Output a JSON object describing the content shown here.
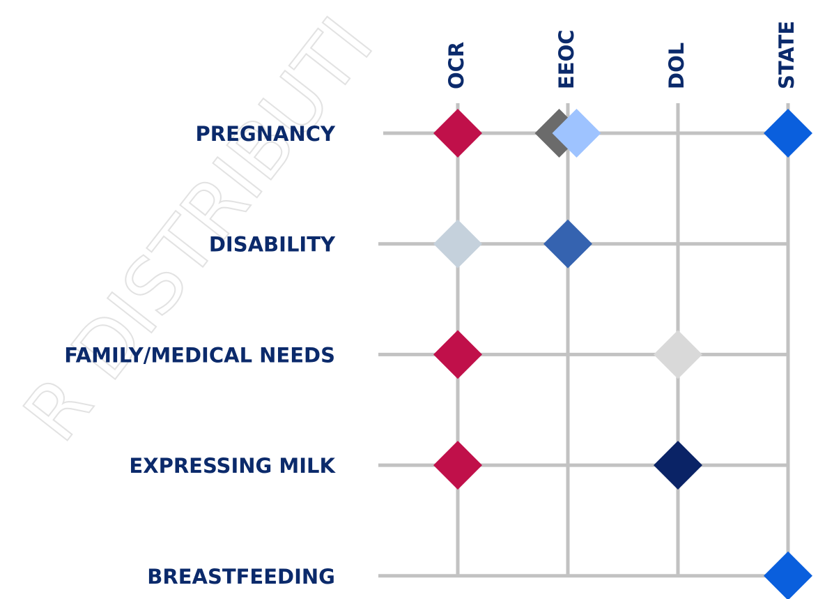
{
  "watermark": "R DISTRIBUTI",
  "columns": [
    "OCR",
    "EEOC",
    "DOL",
    "STATE"
  ],
  "rows": [
    "PREGNANCY",
    "DISABILITY",
    "FAMILY/MEDICAL NEEDS",
    "EXPRESSING MILK",
    "BREASTFEEDING"
  ],
  "marks": [
    {
      "row": 0,
      "column": 0,
      "color": "#c0104a"
    },
    {
      "row": 0,
      "column": 1,
      "color": "#6b6b6b"
    },
    {
      "row": 0,
      "column": 1,
      "color": "#9ec3ff"
    },
    {
      "row": 0,
      "column": 3,
      "color": "#0a5fdd"
    },
    {
      "row": 1,
      "column": 0,
      "color": "#c5d1dc"
    },
    {
      "row": 1,
      "column": 1,
      "color": "#3563b0"
    },
    {
      "row": 2,
      "column": 0,
      "color": "#c0104a"
    },
    {
      "row": 2,
      "column": 2,
      "color": "#d9d9d9"
    },
    {
      "row": 3,
      "column": 0,
      "color": "#c0104a"
    },
    {
      "row": 3,
      "column": 2,
      "color": "#0a2366"
    },
    {
      "row": 4,
      "column": 3,
      "color": "#0a5fdd"
    }
  ]
}
